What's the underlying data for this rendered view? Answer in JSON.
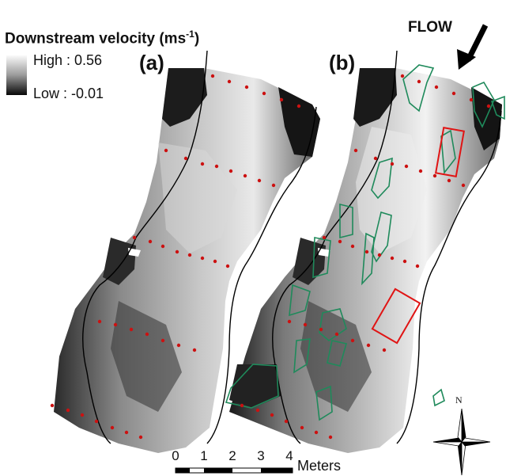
{
  "legend": {
    "title": "Downstream velocity (ms",
    "title_sup": "-1",
    "title_close": ")",
    "high_label": "High : 0.56",
    "low_label": "Low : -0.01"
  },
  "panels": {
    "a_label": "(a)",
    "b_label": "(b)"
  },
  "flow_label": "FLOW",
  "scale_bar": {
    "ticks": [
      "0",
      "1",
      "2",
      "3",
      "4"
    ],
    "unit": "Meters"
  },
  "north_arrow": {
    "label": "N"
  },
  "colors": {
    "velocity_high": "#f4f4f4",
    "velocity_low": "#000000",
    "sample_points": "#cc1111",
    "zone_outlines": "#1f8a5b",
    "highlight_boxes": "#e01414",
    "contour_lines": "#000000"
  }
}
